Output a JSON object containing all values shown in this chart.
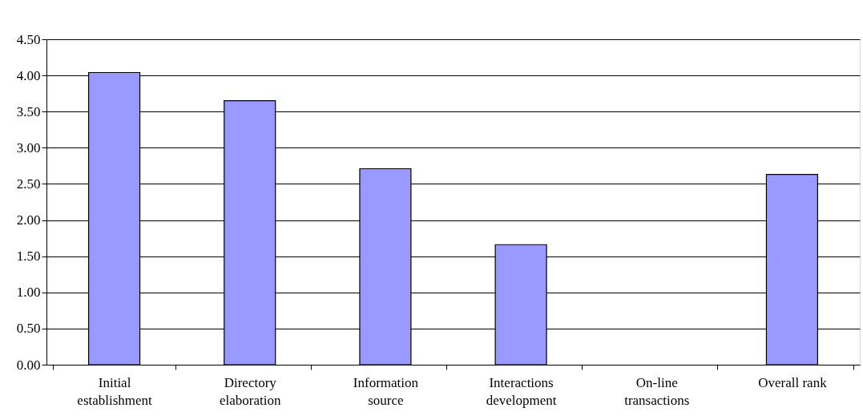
{
  "chart_data": {
    "type": "bar",
    "categories": [
      "Initial establishment",
      "Directory elaboration",
      "Information source",
      "Interactions development",
      "On-line transactions",
      "Overall rank"
    ],
    "values": [
      4.04,
      3.65,
      2.71,
      1.66,
      null,
      2.63
    ],
    "color": "#9999ff",
    "ylim": [
      0,
      4.5
    ],
    "yticks": [
      {
        "value": 0,
        "label": "0.00"
      },
      {
        "value": 0.5,
        "label": "0.50"
      },
      {
        "value": 1,
        "label": "1.00"
      },
      {
        "value": 1.5,
        "label": "1.50"
      },
      {
        "value": 2,
        "label": "2.00"
      },
      {
        "value": 2.5,
        "label": "2.50"
      },
      {
        "value": 3,
        "label": "3.00"
      },
      {
        "value": 3.5,
        "label": "3.50"
      },
      {
        "value": 4,
        "label": "4.00"
      },
      {
        "value": 4.5,
        "label": "4.50"
      }
    ],
    "grid": "y",
    "legend": false
  }
}
